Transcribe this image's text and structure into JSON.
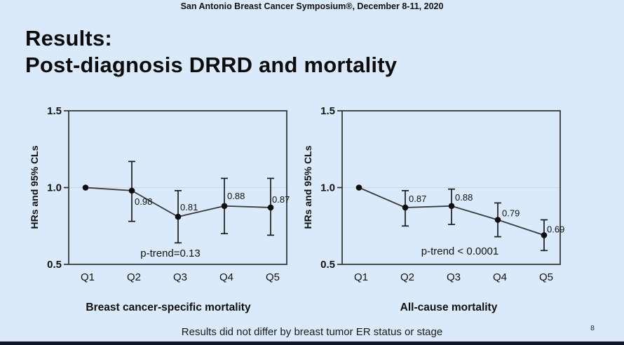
{
  "slide": {
    "header": "San Antonio Breast Cancer Symposium®, December 8-11, 2020",
    "title_line1": "Results:",
    "title_line2": "Post-diagnosis DRRD and mortality",
    "footer_note": "Results did not differ by breast tumor ER status or stage",
    "page_number": "8",
    "colors": {
      "background": "#daeafa",
      "bottom_bar": "#131528",
      "line": "#3a3a3c",
      "point": "#0e0e0e",
      "error_bar": "#1c1c1c",
      "plot_border": "#2e2f31",
      "reference_line": "#ccd6de"
    }
  },
  "chart_data": [
    {
      "type": "line",
      "title": "Breast cancer-specific mortality",
      "ylabel": "HRs and 95% CLs",
      "xlabel": "",
      "categories": [
        "Q1",
        "Q2",
        "Q3",
        "Q4",
        "Q5"
      ],
      "values": [
        1.0,
        0.98,
        0.81,
        0.88,
        0.87
      ],
      "ci_low": [
        null,
        0.78,
        0.64,
        0.7,
        0.69
      ],
      "ci_high": [
        null,
        1.17,
        0.98,
        1.06,
        1.06
      ],
      "point_labels": [
        "",
        "0.98",
        "0.81",
        "0.88",
        "0.87"
      ],
      "annotation": "p-trend=0.13",
      "ylim": [
        0.5,
        1.5
      ],
      "yticks": [
        1.5,
        1.0,
        0.5
      ],
      "reference_line": 1.0,
      "grid": false,
      "legend": "none"
    },
    {
      "type": "line",
      "title": "All-cause mortality",
      "ylabel": "HRs and 95% CLs",
      "xlabel": "",
      "categories": [
        "Q1",
        "Q2",
        "Q3",
        "Q4",
        "Q5"
      ],
      "values": [
        1.0,
        0.87,
        0.88,
        0.79,
        0.69
      ],
      "ci_low": [
        null,
        0.75,
        0.76,
        0.68,
        0.59
      ],
      "ci_high": [
        null,
        0.98,
        0.99,
        0.9,
        0.79
      ],
      "point_labels": [
        "",
        "0.87",
        "0.88",
        "0.79",
        "0.69"
      ],
      "annotation": "p-trend < 0.0001",
      "ylim": [
        0.5,
        1.5
      ],
      "yticks": [
        1.5,
        1.0,
        0.5
      ],
      "reference_line": 1.0,
      "grid": false,
      "legend": "none"
    }
  ]
}
